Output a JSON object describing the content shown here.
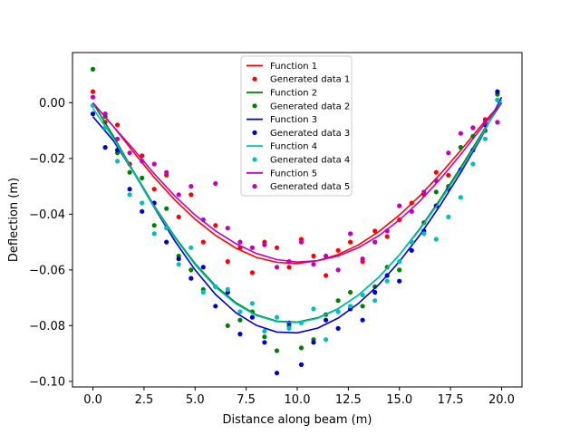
{
  "chart_data": {
    "type": "scatter",
    "xlabel": "Distance along beam (m)",
    "ylabel": "Deflection (m)",
    "xlim": [
      -1.0,
      21.0
    ],
    "ylim": [
      -0.102,
      0.018
    ],
    "x_ticks": [
      0.0,
      2.5,
      5.0,
      7.5,
      10.0,
      12.5,
      15.0,
      17.5,
      20.0
    ],
    "x_tick_labels": [
      "0.0",
      "2.5",
      "5.0",
      "7.5",
      "10.0",
      "12.5",
      "15.0",
      "17.5",
      "20.0"
    ],
    "y_ticks": [
      0.0,
      -0.02,
      -0.04,
      -0.06,
      -0.08,
      -0.1
    ],
    "y_tick_labels": [
      "0.00",
      "−0.02",
      "−0.04",
      "−0.06",
      "−0.08",
      "−0.10"
    ],
    "grid": false,
    "legend_position": "top-center",
    "series": [
      {
        "function_name": "Function 1",
        "data_name": "Generated data 1",
        "color": "#ff0000",
        "curve": {
          "x": [
            0,
            1,
            2,
            3,
            4,
            5,
            6,
            7,
            8,
            9,
            10,
            11,
            12,
            13,
            14,
            15,
            16,
            17,
            18,
            19,
            20
          ],
          "y": [
            0.0,
            -0.0085,
            -0.0178,
            -0.0268,
            -0.0348,
            -0.0418,
            -0.0476,
            -0.0522,
            -0.0555,
            -0.0573,
            -0.0577,
            -0.0567,
            -0.0545,
            -0.051,
            -0.0462,
            -0.0403,
            -0.0334,
            -0.0256,
            -0.0171,
            -0.0082,
            0.0
          ]
        },
        "points": {
          "x": [
            0.0,
            0.6,
            1.2,
            1.8,
            2.4,
            3.0,
            3.6,
            4.2,
            4.8,
            5.4,
            6.0,
            6.6,
            7.2,
            7.8,
            8.4,
            9.0,
            9.6,
            10.2,
            10.8,
            11.4,
            12.0,
            12.6,
            13.2,
            13.8,
            14.4,
            15.0,
            15.6,
            16.2,
            16.8,
            17.4,
            18.0,
            18.6,
            19.2,
            19.8
          ],
          "y": [
            0.004,
            -0.007,
            -0.008,
            -0.022,
            -0.019,
            -0.031,
            -0.026,
            -0.041,
            -0.033,
            -0.05,
            -0.044,
            -0.057,
            -0.052,
            -0.061,
            -0.05,
            -0.052,
            -0.059,
            -0.049,
            -0.055,
            -0.062,
            -0.053,
            -0.05,
            -0.057,
            -0.046,
            -0.048,
            -0.042,
            -0.036,
            -0.033,
            -0.025,
            -0.026,
            -0.016,
            -0.009,
            -0.006,
            0.001
          ]
        }
      },
      {
        "function_name": "Function 2",
        "data_name": "Generated data 2",
        "color": "#008000",
        "curve": {
          "x": [
            0,
            1,
            2,
            3,
            4,
            5,
            6,
            7,
            8,
            9,
            10,
            11,
            12,
            13,
            14,
            15,
            16,
            17,
            18,
            19,
            20
          ],
          "y": [
            0.0,
            -0.012,
            -0.0248,
            -0.037,
            -0.048,
            -0.0577,
            -0.0657,
            -0.0718,
            -0.0761,
            -0.0784,
            -0.0787,
            -0.0772,
            -0.0739,
            -0.069,
            -0.0626,
            -0.0546,
            -0.0452,
            -0.0346,
            -0.0232,
            -0.0114,
            0.0
          ]
        },
        "points": {
          "x": [
            0.0,
            0.6,
            1.2,
            1.8,
            2.4,
            3.0,
            3.6,
            4.2,
            4.8,
            5.4,
            6.0,
            6.6,
            7.2,
            7.8,
            8.4,
            9.0,
            9.6,
            10.2,
            10.8,
            11.4,
            12.0,
            12.6,
            13.2,
            13.8,
            14.4,
            15.0,
            15.6,
            16.2,
            16.8,
            17.4,
            18.0,
            18.6,
            19.2,
            19.8
          ],
          "y": [
            0.012,
            -0.005,
            -0.018,
            -0.025,
            -0.027,
            -0.044,
            -0.038,
            -0.055,
            -0.06,
            -0.067,
            -0.066,
            -0.08,
            -0.078,
            -0.075,
            -0.084,
            -0.089,
            -0.08,
            -0.088,
            -0.085,
            -0.076,
            -0.071,
            -0.068,
            -0.073,
            -0.066,
            -0.059,
            -0.06,
            -0.05,
            -0.043,
            -0.032,
            -0.03,
            -0.016,
            -0.012,
            -0.01,
            0.003
          ]
        }
      },
      {
        "function_name": "Function 3",
        "data_name": "Generated data 3",
        "color": "#0000cc",
        "curve": {
          "x": [
            0,
            1,
            2,
            3,
            4,
            5,
            6,
            7,
            8,
            9,
            10,
            11,
            12,
            13,
            14,
            15,
            16,
            17,
            18,
            19,
            20
          ],
          "y": [
            -0.005,
            -0.0136,
            -0.0251,
            -0.0376,
            -0.0495,
            -0.06,
            -0.0688,
            -0.0754,
            -0.0799,
            -0.0823,
            -0.0826,
            -0.0809,
            -0.0773,
            -0.072,
            -0.0652,
            -0.057,
            -0.0475,
            -0.0368,
            -0.0251,
            -0.0126,
            0.002
          ]
        },
        "points": {
          "x": [
            0.0,
            0.6,
            1.2,
            1.8,
            2.4,
            3.0,
            3.6,
            4.2,
            4.8,
            5.4,
            6.0,
            6.6,
            7.2,
            7.8,
            8.4,
            9.0,
            9.6,
            10.2,
            10.8,
            11.4,
            12.0,
            12.6,
            13.2,
            13.8,
            14.4,
            15.0,
            15.6,
            16.2,
            16.8,
            17.4,
            18.0,
            18.6,
            19.2,
            19.8
          ],
          "y": [
            -0.004,
            -0.016,
            -0.017,
            -0.031,
            -0.039,
            -0.036,
            -0.05,
            -0.056,
            -0.063,
            -0.059,
            -0.073,
            -0.068,
            -0.083,
            -0.077,
            -0.086,
            -0.097,
            -0.079,
            -0.094,
            -0.086,
            -0.078,
            -0.081,
            -0.074,
            -0.078,
            -0.068,
            -0.062,
            -0.064,
            -0.053,
            -0.046,
            -0.037,
            -0.031,
            -0.024,
            -0.017,
            -0.008,
            0.004
          ]
        }
      },
      {
        "function_name": "Function 4",
        "data_name": "Generated data 4",
        "color": "#00bfbf",
        "curve": {
          "x": [
            0,
            1,
            2,
            3,
            4,
            5,
            6,
            7,
            8,
            9,
            10,
            11,
            12,
            13,
            14,
            15,
            16,
            17,
            18,
            19,
            20
          ],
          "y": [
            -0.002,
            -0.0128,
            -0.0251,
            -0.0374,
            -0.0484,
            -0.0582,
            -0.0662,
            -0.0722,
            -0.0764,
            -0.0786,
            -0.0789,
            -0.0774,
            -0.074,
            -0.069,
            -0.0625,
            -0.0546,
            -0.0455,
            -0.0352,
            -0.024,
            -0.0121,
            0.001
          ]
        },
        "points": {
          "x": [
            0.0,
            0.6,
            1.2,
            1.8,
            2.4,
            3.0,
            3.6,
            4.2,
            4.8,
            5.4,
            6.0,
            6.6,
            7.2,
            7.8,
            8.4,
            9.0,
            9.6,
            10.2,
            10.8,
            11.4,
            12.0,
            12.6,
            13.2,
            13.8,
            14.4,
            15.0,
            15.6,
            16.2,
            16.8,
            17.4,
            18.0,
            18.6,
            19.2,
            19.8
          ],
          "y": [
            -0.001,
            -0.009,
            -0.021,
            -0.033,
            -0.036,
            -0.047,
            -0.045,
            -0.058,
            -0.052,
            -0.068,
            -0.066,
            -0.067,
            -0.075,
            -0.072,
            -0.082,
            -0.077,
            -0.081,
            -0.079,
            -0.074,
            -0.085,
            -0.075,
            -0.073,
            -0.069,
            -0.071,
            -0.064,
            -0.057,
            -0.05,
            -0.047,
            -0.049,
            -0.041,
            -0.034,
            -0.022,
            -0.013,
            0.001
          ]
        }
      },
      {
        "function_name": "Function 5",
        "data_name": "Generated data 5",
        "color": "#bf00bf",
        "curve": {
          "x": [
            0,
            1,
            2,
            3,
            4,
            5,
            6,
            7,
            8,
            9,
            10,
            11,
            12,
            13,
            14,
            15,
            16,
            17,
            18,
            19,
            20
          ],
          "y": [
            0.0,
            -0.0085,
            -0.0168,
            -0.0255,
            -0.0334,
            -0.0403,
            -0.046,
            -0.0506,
            -0.0541,
            -0.0563,
            -0.0572,
            -0.0567,
            -0.055,
            -0.052,
            -0.0477,
            -0.0421,
            -0.0353,
            -0.0274,
            -0.0186,
            -0.0092,
            0.0
          ]
        },
        "points": {
          "x": [
            0.0,
            0.6,
            1.2,
            1.8,
            2.4,
            3.0,
            3.6,
            4.2,
            4.8,
            5.4,
            6.0,
            6.6,
            7.2,
            7.8,
            8.4,
            9.0,
            9.6,
            10.2,
            10.8,
            11.4,
            12.0,
            12.6,
            13.2,
            13.8,
            14.4,
            15.0,
            15.6,
            16.2,
            16.8,
            17.4,
            18.0,
            18.6,
            19.2,
            19.8
          ],
          "y": [
            0.002,
            -0.004,
            -0.013,
            -0.018,
            -0.021,
            -0.022,
            -0.025,
            -0.033,
            -0.03,
            -0.042,
            -0.029,
            -0.045,
            -0.05,
            -0.052,
            -0.051,
            -0.059,
            -0.057,
            -0.05,
            -0.058,
            -0.055,
            -0.06,
            -0.047,
            -0.056,
            -0.05,
            -0.046,
            -0.037,
            -0.039,
            -0.032,
            -0.028,
            -0.018,
            -0.011,
            -0.009,
            -0.007,
            -0.007
          ]
        }
      }
    ]
  }
}
